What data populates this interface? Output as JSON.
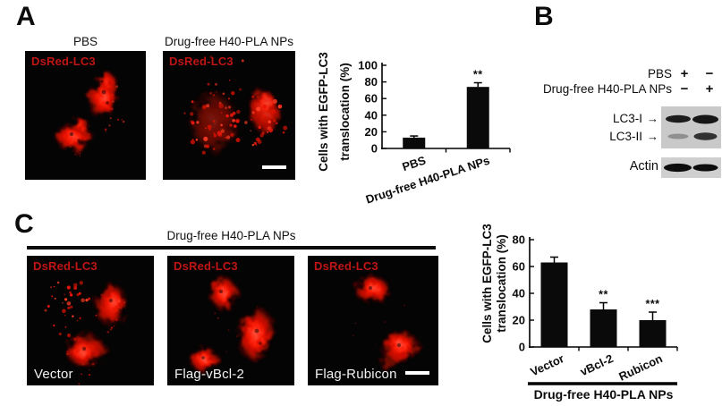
{
  "figure": {
    "panel_a": {
      "label": "A",
      "images": [
        {
          "title": "PBS",
          "marker": "DsRed-LC3"
        },
        {
          "title": "Drug-free H40-PLA NPs",
          "marker": "DsRed-LC3"
        }
      ]
    },
    "panel_b": {
      "label": "B",
      "condition_rows": [
        {
          "label": "PBS",
          "lanes": [
            "+",
            "−"
          ]
        },
        {
          "label": "Drug-free H40-PLA NPs",
          "lanes": [
            "−",
            "+"
          ]
        }
      ],
      "band_labels": [
        "LC3-I",
        "LC3-II"
      ],
      "arrow": "→",
      "loading_control": "Actin"
    },
    "panel_c": {
      "label": "C",
      "header": "Drug-free H40-PLA NPs",
      "images": [
        {
          "marker": "DsRed-LC3",
          "caption": "Vector"
        },
        {
          "marker": "DsRed-LC3",
          "caption": "Flag-vBcl-2"
        },
        {
          "marker": "DsRed-LC3",
          "caption": "Flag-Rubicon"
        }
      ]
    }
  },
  "chart_data": [
    {
      "id": "a",
      "type": "bar",
      "categories": [
        "PBS",
        "Drug-free H40-PLA NPs"
      ],
      "values": [
        13,
        74
      ],
      "errors": [
        2,
        5
      ],
      "significance": [
        "",
        "**"
      ],
      "title": "",
      "xlabel": "",
      "ylabel": "Cells with EGFP-LC3 translocation (%)",
      "ylabel_lines": [
        "Cells with EGFP-LC3",
        "translocation (%)"
      ],
      "ylim": [
        0,
        100
      ],
      "yticks": [
        0,
        20,
        40,
        60,
        80,
        100
      ],
      "grid": false,
      "legend": false
    },
    {
      "id": "c",
      "type": "bar",
      "categories": [
        "Vector",
        "vBcl-2",
        "Rubicon"
      ],
      "values": [
        63,
        28,
        20
      ],
      "errors": [
        4,
        5,
        6
      ],
      "significance": [
        "",
        "**",
        "***"
      ],
      "title": "",
      "xlabel": "",
      "ylabel": "Cells with EGFP-LC3 translocation (%)",
      "ylabel_lines": [
        "Cells with EGFP-LC3",
        "translocation (%)"
      ],
      "ylim": [
        0,
        80
      ],
      "yticks": [
        0,
        20,
        40,
        60,
        80
      ],
      "group_label": "Drug-free H40-PLA NPs",
      "grid": false,
      "legend": false
    }
  ],
  "colors": {
    "bar": "#0a0a0a",
    "marker_red": "#bf1515",
    "fluorescence_red": "#f01505",
    "caption_white": "#f2f2f2",
    "blot_background": "#c9c9c9",
    "image_background": "#040404"
  }
}
